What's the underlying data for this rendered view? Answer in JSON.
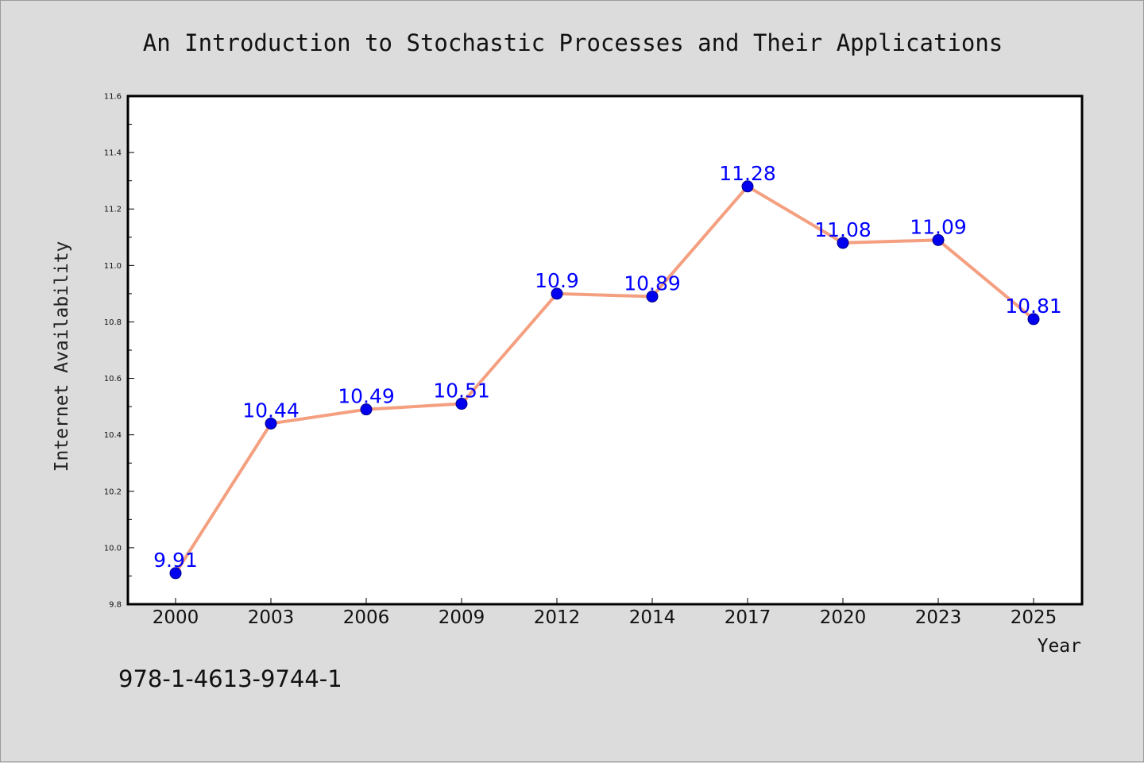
{
  "footer": {
    "isbn": "978-1-4613-9744-1"
  },
  "colors": {
    "background": "#dcdcdc",
    "plot_background": "#ffffff",
    "line": "#f4a080",
    "marker": "#0000ee",
    "data_label": "#0000ff"
  },
  "chart_data": {
    "type": "line",
    "title": "An Introduction to Stochastic Processes and Their Applications",
    "xlabel": "Year",
    "ylabel": "Internet Availability",
    "categories": [
      "2000",
      "2003",
      "2006",
      "2009",
      "2012",
      "2014",
      "2017",
      "2020",
      "2023",
      "2025"
    ],
    "series": [
      {
        "values": [
          9.91,
          10.44,
          10.49,
          10.51,
          10.9,
          10.89,
          11.28,
          11.08,
          11.09,
          10.81
        ],
        "labels": [
          "9.91",
          "10.44",
          "10.49",
          "10.51",
          "10.9",
          "10.89",
          "11.28",
          "11.08",
          "11.09",
          "10.81"
        ]
      }
    ],
    "ylim": [
      9.8,
      11.6
    ],
    "yticks": [
      "9.8",
      "10.0",
      "10.2",
      "10.4",
      "10.6",
      "10.8",
      "11.0",
      "11.2",
      "11.4",
      "11.6"
    ],
    "grid": false,
    "legend": "none"
  }
}
